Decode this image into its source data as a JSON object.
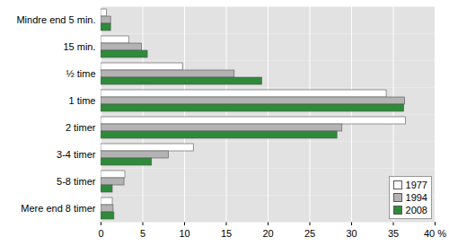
{
  "chart_data": {
    "type": "bar",
    "orientation": "horizontal",
    "categories": [
      "Mindre end 5 min.",
      "15 min.",
      "½ time",
      "1 time",
      "2 timer",
      "3-4 timer",
      "5-8 timer",
      "Mere end 8 timer"
    ],
    "series": [
      {
        "name": "1977",
        "color": "#ffffff",
        "values": [
          0.7,
          3.4,
          9.8,
          34.2,
          36.5,
          11.1,
          2.9,
          1.4
        ]
      },
      {
        "name": "1994",
        "color": "#b3b3b3",
        "values": [
          1.2,
          4.9,
          16.0,
          36.4,
          28.9,
          8.1,
          2.8,
          1.5
        ]
      },
      {
        "name": "2008",
        "color": "#2e8b3a",
        "values": [
          1.2,
          5.6,
          19.3,
          36.3,
          28.3,
          6.1,
          1.4,
          1.6
        ]
      }
    ],
    "xlim": [
      0,
      40
    ],
    "xticks": [
      0,
      5,
      10,
      15,
      20,
      25,
      30,
      35,
      {
        "value": 40,
        "label": "40 %"
      }
    ],
    "grid": true,
    "legend": "lower right"
  }
}
